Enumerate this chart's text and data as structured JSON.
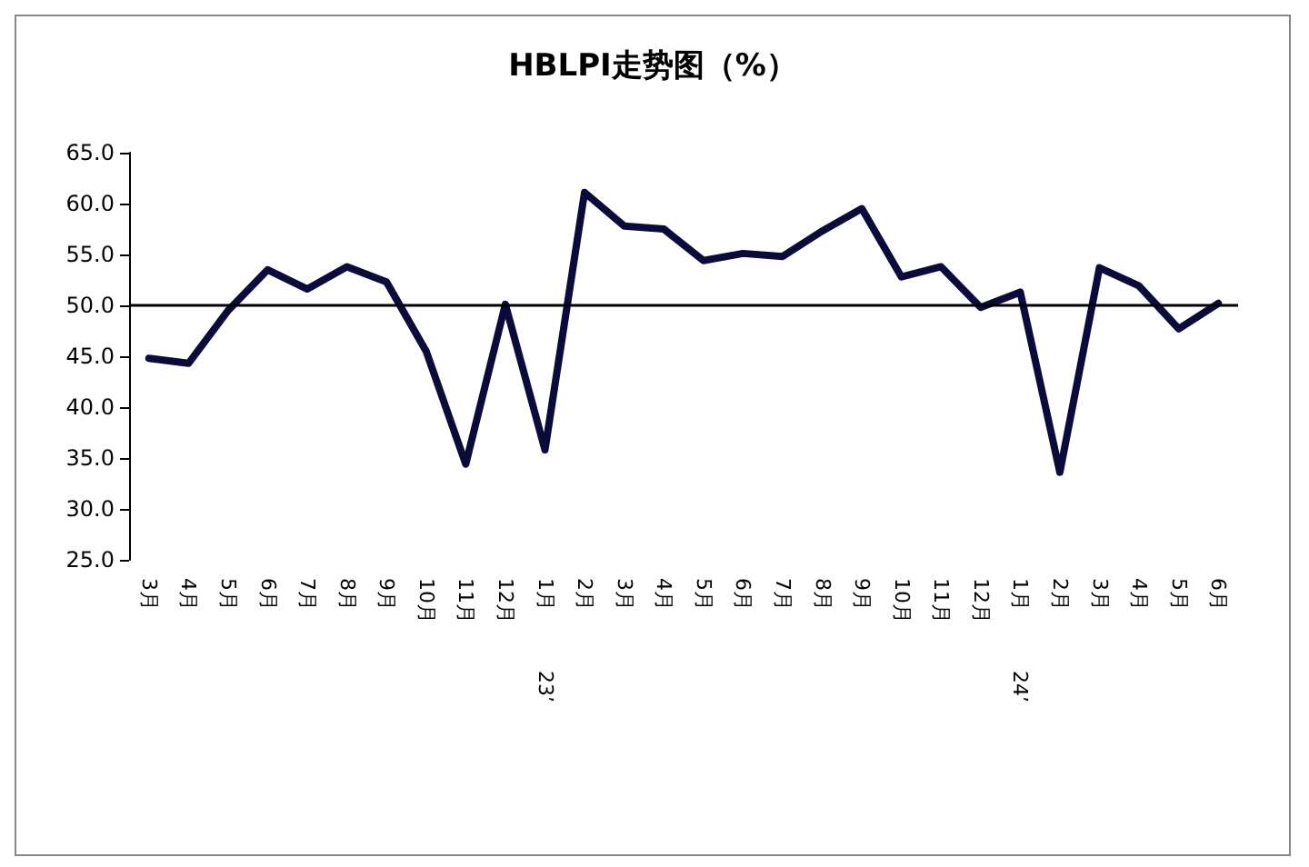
{
  "chart_data": {
    "type": "line",
    "title": "HBLPI走势图（%）",
    "categories": [
      "3月",
      "4月",
      "5月",
      "6月",
      "7月",
      "8月",
      "9月",
      "10月",
      "11月",
      "12月",
      "1月\n23’",
      "2月",
      "3月",
      "4月",
      "5月",
      "6月",
      "7月",
      "8月",
      "9月",
      "10月",
      "11月",
      "12月",
      "1月\n24’",
      "2月",
      "3月",
      "4月",
      "5月",
      "6月"
    ],
    "series": [
      {
        "color": "#0b0b3b",
        "values": [
          44.8,
          44.3,
          49.5,
          53.5,
          51.6,
          53.8,
          52.3,
          45.5,
          34.4,
          50.1,
          35.8,
          61.1,
          57.8,
          57.5,
          54.4,
          55.1,
          54.8,
          57.3,
          59.5,
          52.8,
          53.8,
          49.8,
          51.3,
          33.6,
          53.7,
          51.9,
          47.7,
          50.2
        ]
      }
    ],
    "ylim": [
      25,
      65
    ],
    "yticks": [
      {
        "value": 25,
        "label": "25.0"
      },
      {
        "value": 30,
        "label": "30.0"
      },
      {
        "value": 35,
        "label": "35.0"
      },
      {
        "value": 40,
        "label": "40.0"
      },
      {
        "value": 45,
        "label": "45.0"
      },
      {
        "value": 50,
        "label": "50.0"
      },
      {
        "value": 55,
        "label": "55.0"
      },
      {
        "value": 60,
        "label": "60.0"
      },
      {
        "value": 65,
        "label": "65.0"
      }
    ],
    "ref_lines": [
      {
        "axis": "y",
        "value": 50,
        "color": "#000000"
      }
    ],
    "grid": false,
    "marker": "none",
    "line_style": "solid"
  }
}
